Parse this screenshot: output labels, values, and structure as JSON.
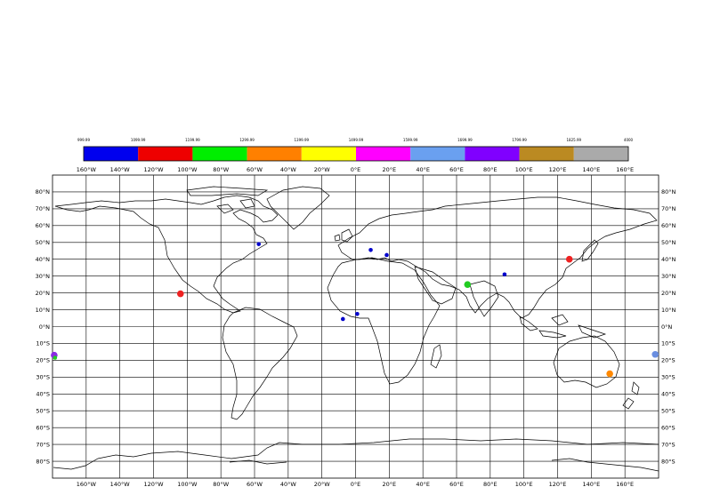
{
  "legend": {
    "boundaries": [
      "999.99",
      "1099.99",
      "1199.99",
      "1299.99",
      "1399.99",
      "1499.99",
      "1599.99",
      "1699.99",
      "1799.99",
      "1825.99",
      "4000"
    ],
    "colors": [
      "#0000ee",
      "#ee0000",
      "#00ee00",
      "#ff8000",
      "#ffff00",
      "#ff00ff",
      "#6aa0f0",
      "#8000ff",
      "#bb8a22",
      "#aaaaaa"
    ]
  },
  "axes": {
    "lon_ticks": [
      "160°W",
      "140°W",
      "120°W",
      "100°W",
      "80°W",
      "60°W",
      "40°W",
      "20°W",
      "0°E",
      "20°E",
      "40°E",
      "60°E",
      "80°E",
      "100°E",
      "120°E",
      "140°E",
      "160°E"
    ],
    "lat_ticks": [
      "80°N",
      "70°N",
      "60°N",
      "50°N",
      "40°N",
      "30°N",
      "20°N",
      "10°N",
      "0°N",
      "10°S",
      "20°S",
      "30°S",
      "40°S",
      "50°S",
      "60°S",
      "70°S",
      "80°S"
    ]
  },
  "map_data": {
    "projection": "plate-carree",
    "lon_range": [
      -180,
      180
    ],
    "lat_range": [
      -90,
      90
    ],
    "gridlines": true,
    "points": [
      {
        "lon": -57.5,
        "lat": 49.0,
        "color": "#0000cc",
        "size": "small"
      },
      {
        "lon": -104.0,
        "lat": 19.5,
        "color": "#ee2222",
        "size": "large"
      },
      {
        "lon": 9.0,
        "lat": 45.5,
        "color": "#0000cc",
        "size": "small"
      },
      {
        "lon": 18.5,
        "lat": 42.5,
        "color": "#0000cc",
        "size": "small"
      },
      {
        "lon": -7.5,
        "lat": 4.5,
        "color": "#0000cc",
        "size": "small"
      },
      {
        "lon": 1.0,
        "lat": 7.5,
        "color": "#0000cc",
        "size": "small"
      },
      {
        "lon": 66.5,
        "lat": 25.0,
        "color": "#22cc22",
        "size": "large"
      },
      {
        "lon": 88.5,
        "lat": 31.0,
        "color": "#0000cc",
        "size": "small"
      },
      {
        "lon": 127.0,
        "lat": 40.0,
        "color": "#ee2222",
        "size": "large"
      },
      {
        "lon": 151.0,
        "lat": -28.0,
        "color": "#ff8800",
        "size": "large"
      },
      {
        "lon": 178.0,
        "lat": -16.5,
        "color": "#6a8ee0",
        "size": "large"
      },
      {
        "lon": -179.0,
        "lat": -17.0,
        "color": "#8a2be2",
        "size": "large"
      },
      {
        "lon": -178.5,
        "lat": -18.5,
        "color": "#22cc22",
        "size": "small"
      }
    ]
  }
}
